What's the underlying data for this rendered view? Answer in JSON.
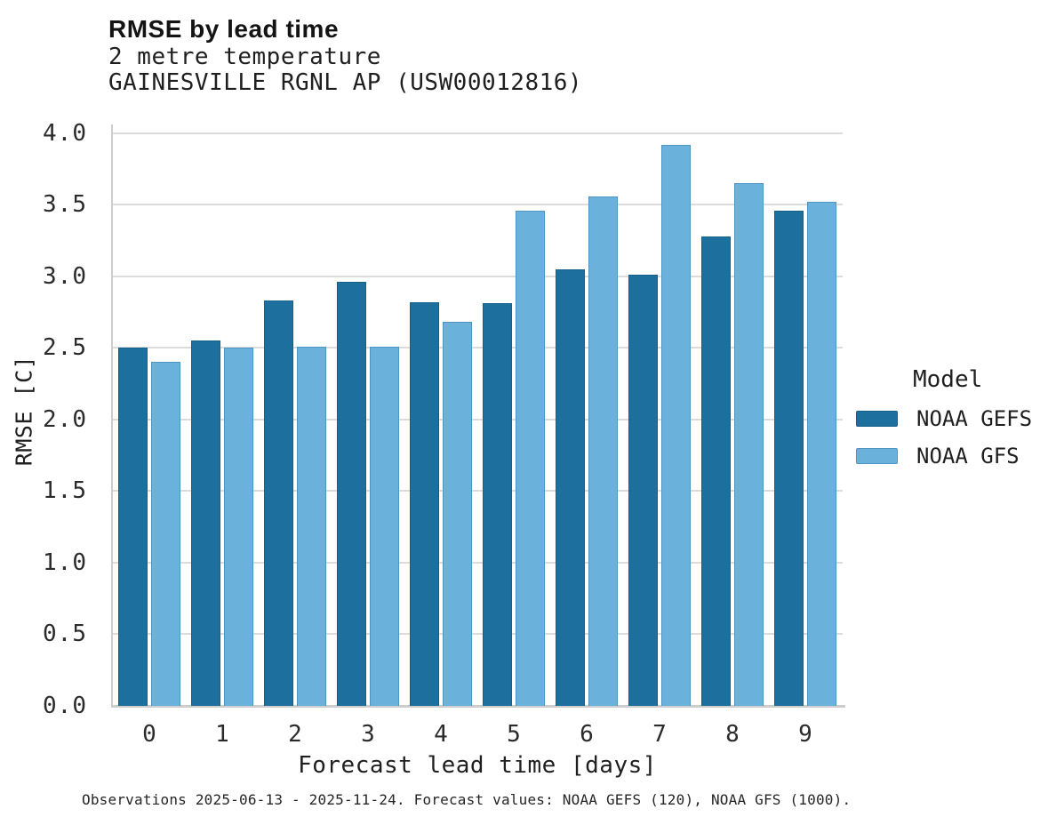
{
  "header": {
    "title": "RMSE by lead time",
    "subtitle_line1": "2 metre temperature",
    "subtitle_line2": "GAINESVILLE RGNL AP (USW00012816)"
  },
  "chart_data": {
    "type": "bar",
    "title": "RMSE by lead time",
    "subtitle": "2 metre temperature",
    "station": "GAINESVILLE RGNL AP (USW00012816)",
    "xlabel": "Forecast lead time [days]",
    "ylabel": "RMSE [C]",
    "categories": [
      "0",
      "1",
      "2",
      "3",
      "4",
      "5",
      "6",
      "7",
      "8",
      "9"
    ],
    "series": [
      {
        "name": "NOAA GEFS",
        "color": "#1d6f9e",
        "edge_color": "#14618c",
        "values": [
          2.5,
          2.55,
          2.83,
          2.96,
          2.82,
          2.81,
          3.05,
          3.01,
          3.28,
          3.46
        ]
      },
      {
        "name": "NOAA GFS",
        "color": "#6ab1dc",
        "edge_color": "#4f95c1",
        "values": [
          2.4,
          2.5,
          2.51,
          2.51,
          2.68,
          3.46,
          3.56,
          3.92,
          3.65,
          3.52
        ]
      }
    ],
    "yticks": [
      0.0,
      0.5,
      1.0,
      1.5,
      2.0,
      2.5,
      3.0,
      3.5,
      4.0
    ],
    "ylim": [
      0,
      4.06
    ],
    "grid": "horizontal",
    "gridline_color": "#dcdcdc",
    "spine_color": "#cdcdcd",
    "legend_title": "Model",
    "legend_position": "right"
  },
  "caption": "Observations 2025-06-13 - 2025-11-24. Forecast values: NOAA GEFS (120), NOAA GFS (1000)."
}
